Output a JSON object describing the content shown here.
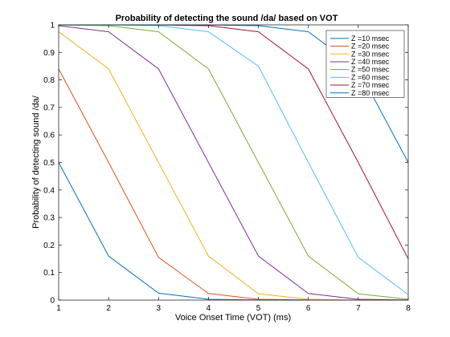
{
  "chart_data": {
    "type": "line",
    "title": "Probability of detecting the sound /da/ based on VOT",
    "xlabel": "Voice Onset Time (VOT) (ms)",
    "ylabel": "Probability of detecting sound /da/",
    "xlim": [
      1,
      8
    ],
    "ylim": [
      0,
      1
    ],
    "xticks": [
      "1",
      "2",
      "3",
      "4",
      "5",
      "6",
      "7",
      "8"
    ],
    "yticks": [
      "0",
      "0.1",
      "0.2",
      "0.3",
      "0.4",
      "0.5",
      "0.6",
      "0.7",
      "0.8",
      "0.9",
      "1"
    ],
    "grid": false,
    "legend_position": "top-right",
    "x": [
      1,
      2,
      3,
      4,
      5,
      6,
      7,
      8
    ],
    "series": [
      {
        "name": "Z =10 msec",
        "color": "#0072BD",
        "values": [
          0.5,
          0.16,
          0.025,
          0.003,
          0.0005,
          0.0001,
          0.0,
          0.0
        ]
      },
      {
        "name": "Z =20 msec",
        "color": "#D95319",
        "values": [
          0.84,
          0.5,
          0.155,
          0.024,
          0.003,
          0.0005,
          0.0001,
          0.0
        ]
      },
      {
        "name": "Z =30 msec",
        "color": "#EDB120",
        "values": [
          0.975,
          0.84,
          0.5,
          0.16,
          0.023,
          0.003,
          0.0005,
          0.0001
        ]
      },
      {
        "name": "Z =40 msec",
        "color": "#7E2F8E",
        "values": [
          0.997,
          0.975,
          0.84,
          0.5,
          0.16,
          0.024,
          0.003,
          0.0005
        ]
      },
      {
        "name": "Z =50 msec",
        "color": "#77AC30",
        "values": [
          0.9995,
          0.997,
          0.975,
          0.84,
          0.5,
          0.16,
          0.023,
          0.003
        ]
      },
      {
        "name": "Z =60 msec",
        "color": "#4DBEEE",
        "values": [
          0.9999,
          0.9995,
          0.997,
          0.975,
          0.85,
          0.5,
          0.155,
          0.02
        ]
      },
      {
        "name": "Z =70 msec",
        "color": "#A2142F",
        "values": [
          1.0,
          0.9999,
          0.9995,
          0.997,
          0.975,
          0.84,
          0.5,
          0.15
        ]
      },
      {
        "name": "Z =80 msec",
        "color": "#0072BD",
        "values": [
          1.0,
          1.0,
          0.9999,
          0.9995,
          0.997,
          0.975,
          0.84,
          0.5
        ]
      }
    ]
  }
}
